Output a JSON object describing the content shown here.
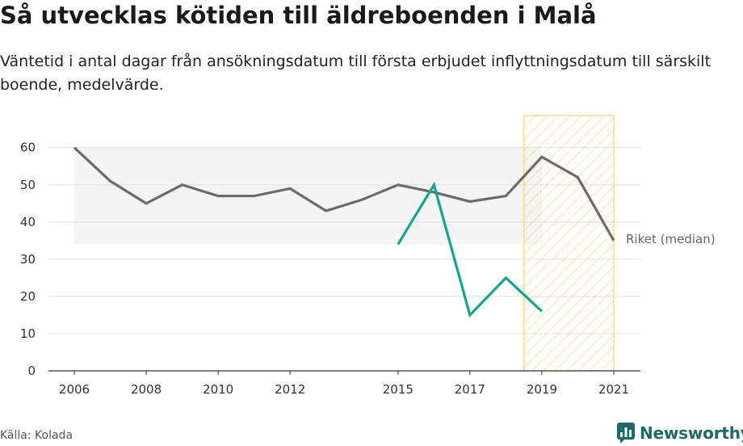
{
  "title": "Så utvecklas kötiden till äldreboenden i Malå",
  "subtitle": "Väntetid i antal dagar från ansökningsdatum till första erbjudet inflyttningsdatum till särskilt boende, medelvärde.",
  "source": "Källa: Kolada",
  "brand": "Newsworthy",
  "colors": {
    "malå": "#12a594",
    "riket": "#6b6a70",
    "highlight": "#f5d27a",
    "band": "#f4f4f4",
    "grid": "#dddddd"
  },
  "icons": {
    "brand": "bar-chart-bubble-icon"
  },
  "chart_data": {
    "type": "line",
    "xlim": [
      2006,
      2021
    ],
    "ylim": [
      0,
      65
    ],
    "y_ticks": [
      0,
      10,
      20,
      30,
      40,
      50,
      60
    ],
    "x_ticks": [
      2006,
      2008,
      2010,
      2012,
      2015,
      2017,
      2019,
      2021
    ],
    "grid": true,
    "series": [
      {
        "name": "Riket (median)",
        "x": [
          2006,
          2007,
          2008,
          2009,
          2010,
          2011,
          2012,
          2013,
          2014,
          2015,
          2016,
          2017,
          2018,
          2019,
          2020,
          2021
        ],
        "y": [
          60,
          51,
          45,
          50,
          47,
          47,
          49,
          43,
          46,
          50,
          48,
          45.5,
          47,
          57.5,
          52,
          35
        ]
      },
      {
        "x": [
          2015,
          2016,
          2017,
          2018,
          2019
        ],
        "y": [
          34,
          50,
          15,
          25,
          16
        ]
      }
    ],
    "highlight_range": [
      2018.5,
      2021
    ],
    "band": {
      "x": [
        2006,
        2019
      ],
      "y": [
        34,
        60
      ]
    }
  }
}
